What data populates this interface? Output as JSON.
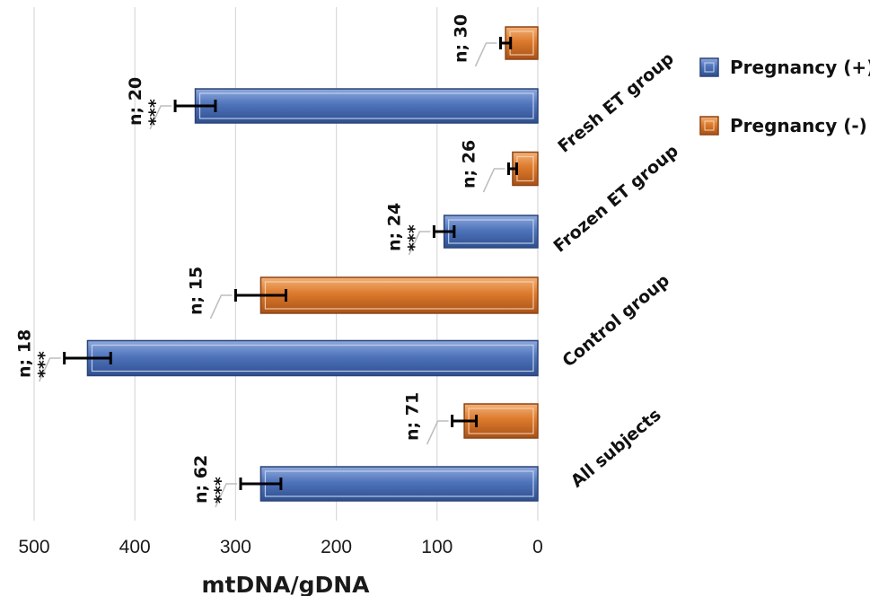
{
  "chart_data": {
    "type": "bar",
    "orientation": "horizontal",
    "x_axis_reversed": true,
    "xlabel": "mtDNA/gDNA",
    "xlim": [
      0,
      500
    ],
    "x_ticks": [
      500,
      400,
      300,
      200,
      100,
      0
    ],
    "grid": "vertical gridlines",
    "legend_position": "right",
    "categories": [
      "Fresh ET group",
      "Frozen ET group",
      "Control group",
      "All subjects"
    ],
    "series": [
      {
        "name": "Pregnancy (+)",
        "color": "#4a6fb5",
        "values": [
          340,
          93,
          447,
          275
        ],
        "errors": [
          20,
          10,
          23,
          20
        ],
        "n_labels": [
          "n; 20",
          "n; 24",
          "n; 18",
          "n; 62"
        ],
        "significance": [
          "***",
          "***",
          "***",
          "***"
        ]
      },
      {
        "name": "Pregnancy (-)",
        "color": "#d9782d",
        "values": [
          32,
          25,
          275,
          73
        ],
        "errors": [
          5,
          4,
          25,
          12
        ],
        "n_labels": [
          "n; 30",
          "n; 26",
          "n; 15",
          "n; 71"
        ],
        "significance": [
          "",
          "",
          "",
          ""
        ]
      }
    ]
  }
}
